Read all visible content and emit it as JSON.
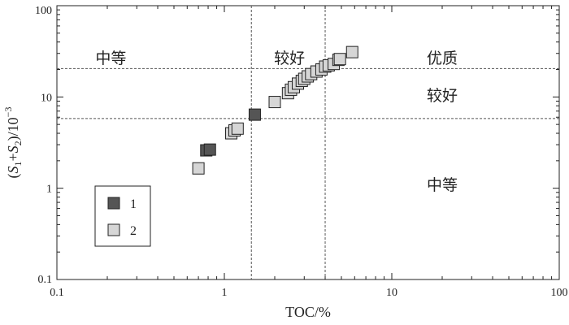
{
  "chart_data": {
    "type": "scatter",
    "x_scale": "log",
    "y_scale": "log",
    "xlim": [
      0.1,
      100
    ],
    "ylim": [
      0.1,
      100
    ],
    "x_ticks": [
      {
        "value": 0.1,
        "label": "0.1"
      },
      {
        "value": 1,
        "label": "1"
      },
      {
        "value": 10,
        "label": "10"
      },
      {
        "value": 100,
        "label": "100"
      }
    ],
    "y_ticks": [
      {
        "value": 0.1,
        "label": "0.1"
      },
      {
        "value": 1,
        "label": "1"
      },
      {
        "value": 10,
        "label": "10"
      },
      {
        "value": 100,
        "label": "100"
      }
    ],
    "xlabel": "TOC/%",
    "ylabel": {
      "pre": "(",
      "s1": "S",
      "sub1": "1",
      "plus": "+",
      "s2": "S",
      "sub2": "2",
      "post": ")/10",
      "exp": "−3"
    },
    "thresholds": {
      "x": [
        1.45,
        4.0
      ],
      "y": [
        5.8,
        20.5
      ]
    },
    "zone_labels": [
      {
        "text": "中等",
        "x": 0.21,
        "y": 27
      },
      {
        "text": "较好",
        "x": 2.45,
        "y": 27
      },
      {
        "text": "优质",
        "x": 20,
        "y": 27
      },
      {
        "text": "较好",
        "x": 20,
        "y": 10.5
      },
      {
        "text": "中等",
        "x": 20,
        "y": 1.1
      }
    ],
    "series": [
      {
        "name": "1",
        "color": "#555555",
        "points": [
          [
            0.78,
            2.6
          ],
          [
            0.82,
            2.65
          ],
          [
            1.52,
            6.4
          ]
        ]
      },
      {
        "name": "2",
        "color": "#d6d6d6",
        "points": [
          [
            0.7,
            1.65
          ],
          [
            1.1,
            4.0
          ],
          [
            1.15,
            4.3
          ],
          [
            1.2,
            4.5
          ],
          [
            2.0,
            8.8
          ],
          [
            2.4,
            11.0
          ],
          [
            2.5,
            12.0
          ],
          [
            2.6,
            12.8
          ],
          [
            2.75,
            14.0
          ],
          [
            2.9,
            15.0
          ],
          [
            3.0,
            15.8
          ],
          [
            3.15,
            16.8
          ],
          [
            3.3,
            17.8
          ],
          [
            3.55,
            19.0
          ],
          [
            3.8,
            20.0
          ],
          [
            4.0,
            21.5
          ],
          [
            4.2,
            22.2
          ],
          [
            4.5,
            23.0
          ],
          [
            4.8,
            25.5
          ],
          [
            4.9,
            26.0
          ],
          [
            5.8,
            31.0
          ]
        ]
      }
    ],
    "legend": {
      "placement": "lower-left",
      "entries": [
        "1",
        "2"
      ]
    }
  }
}
